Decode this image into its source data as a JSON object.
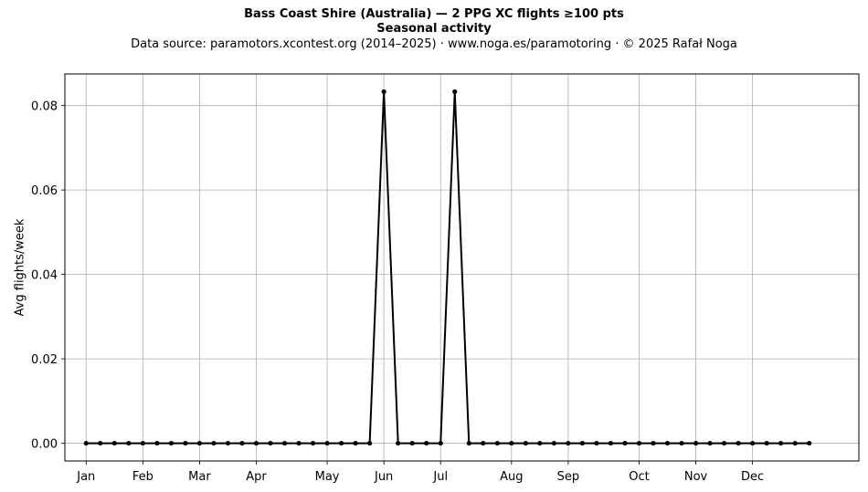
{
  "header": {
    "title": "Bass Coast Shire (Australia)  —  2 PPG XC flights ≥100 pts",
    "title2": "Seasonal activity",
    "subtitle": "Data source: paramotors.xcontest.org (2014–2025)  ·  www.noga.es/paramotoring  ·  © 2025 Rafał Noga"
  },
  "chart_data": {
    "type": "line",
    "ylabel": "Avg flights/week",
    "xlabel": "",
    "x_unit": "week of year",
    "xlim": [
      -1.5,
      54.5
    ],
    "ylim": [
      -0.0042,
      0.0875
    ],
    "grid": true,
    "month_ticks": [
      {
        "label": "Jan",
        "week": 0
      },
      {
        "label": "Feb",
        "week": 4
      },
      {
        "label": "Mar",
        "week": 8
      },
      {
        "label": "Apr",
        "week": 12
      },
      {
        "label": "May",
        "week": 17
      },
      {
        "label": "Jun",
        "week": 21
      },
      {
        "label": "Jul",
        "week": 25
      },
      {
        "label": "Aug",
        "week": 30
      },
      {
        "label": "Sep",
        "week": 34
      },
      {
        "label": "Oct",
        "week": 39
      },
      {
        "label": "Nov",
        "week": 43
      },
      {
        "label": "Dec",
        "week": 47
      }
    ],
    "y_ticks": [
      "0.00",
      "0.02",
      "0.04",
      "0.06",
      "0.08"
    ],
    "y_tick_values": [
      0,
      0.02,
      0.04,
      0.06,
      0.08
    ],
    "series": [
      {
        "color": "#000000",
        "x": [
          0,
          1,
          2,
          3,
          4,
          5,
          6,
          7,
          8,
          9,
          10,
          11,
          12,
          13,
          14,
          15,
          16,
          17,
          18,
          19,
          20,
          21,
          22,
          23,
          24,
          25,
          26,
          27,
          28,
          29,
          30,
          31,
          32,
          33,
          34,
          35,
          36,
          37,
          38,
          39,
          40,
          41,
          42,
          43,
          44,
          45,
          46,
          47,
          48,
          49,
          50,
          51
        ],
        "values": [
          0,
          0,
          0,
          0,
          0,
          0,
          0,
          0,
          0,
          0,
          0,
          0,
          0,
          0,
          0,
          0,
          0,
          0,
          0,
          0,
          0,
          0.0833,
          0,
          0,
          0,
          0,
          0.0833,
          0,
          0,
          0,
          0,
          0,
          0,
          0,
          0,
          0,
          0,
          0,
          0,
          0,
          0,
          0,
          0,
          0,
          0,
          0,
          0,
          0,
          0,
          0,
          0,
          0
        ]
      }
    ]
  }
}
